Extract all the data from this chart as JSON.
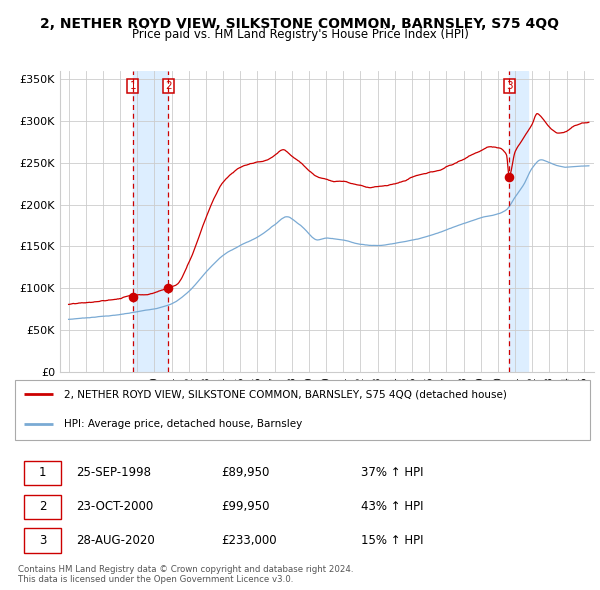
{
  "title": "2, NETHER ROYD VIEW, SILKSTONE COMMON, BARNSLEY, S75 4QQ",
  "subtitle": "Price paid vs. HM Land Registry's House Price Index (HPI)",
  "legend_label_red": "2, NETHER ROYD VIEW, SILKSTONE COMMON, BARNSLEY, S75 4QQ (detached house)",
  "legend_label_blue": "HPI: Average price, detached house, Barnsley",
  "transactions": [
    {
      "num": 1,
      "date": "25-SEP-1998",
      "price": 89950,
      "year": 1998.73,
      "pct": "37% ↑ HPI"
    },
    {
      "num": 2,
      "date": "23-OCT-2000",
      "price": 99950,
      "year": 2000.81,
      "pct": "43% ↑ HPI"
    },
    {
      "num": 3,
      "date": "28-AUG-2020",
      "price": 233000,
      "year": 2020.66,
      "pct": "15% ↑ HPI"
    }
  ],
  "ylabel_ticks": [
    "£0",
    "£50K",
    "£100K",
    "£150K",
    "£200K",
    "£250K",
    "£300K",
    "£350K"
  ],
  "ytick_vals": [
    0,
    50000,
    100000,
    150000,
    200000,
    250000,
    300000,
    350000
  ],
  "ylim": [
    0,
    360000
  ],
  "xlim_start": 1994.5,
  "xlim_end": 2025.6,
  "red_color": "#cc0000",
  "blue_color": "#7aaad4",
  "bg_shade_color": "#ddeeff",
  "grid_color": "#cccccc",
  "footer_text": "Contains HM Land Registry data © Crown copyright and database right 2024.\nThis data is licensed under the Open Government Licence v3.0.",
  "blue_anchors": [
    [
      1995.0,
      61000
    ],
    [
      1996.0,
      63000
    ],
    [
      1997.0,
      65000
    ],
    [
      1998.0,
      67000
    ],
    [
      1999.0,
      70000
    ],
    [
      2000.0,
      74000
    ],
    [
      2001.0,
      80000
    ],
    [
      2002.0,
      95000
    ],
    [
      2003.0,
      118000
    ],
    [
      2004.0,
      138000
    ],
    [
      2005.0,
      150000
    ],
    [
      2006.0,
      160000
    ],
    [
      2007.0,
      175000
    ],
    [
      2007.7,
      185000
    ],
    [
      2008.5,
      175000
    ],
    [
      2009.5,
      158000
    ],
    [
      2010.0,
      160000
    ],
    [
      2011.0,
      158000
    ],
    [
      2012.0,
      153000
    ],
    [
      2013.0,
      152000
    ],
    [
      2014.0,
      155000
    ],
    [
      2015.0,
      158000
    ],
    [
      2016.0,
      163000
    ],
    [
      2017.0,
      170000
    ],
    [
      2018.0,
      178000
    ],
    [
      2019.0,
      185000
    ],
    [
      2020.0,
      190000
    ],
    [
      2020.5,
      195000
    ],
    [
      2021.0,
      210000
    ],
    [
      2021.5,
      225000
    ],
    [
      2022.0,
      245000
    ],
    [
      2022.5,
      255000
    ],
    [
      2023.0,
      252000
    ],
    [
      2023.5,
      248000
    ],
    [
      2024.0,
      246000
    ],
    [
      2024.5,
      247000
    ],
    [
      2025.3,
      248000
    ]
  ],
  "red_anchors": [
    [
      1995.0,
      79000
    ],
    [
      1996.0,
      80000
    ],
    [
      1997.0,
      82000
    ],
    [
      1998.0,
      85000
    ],
    [
      1998.73,
      89950
    ],
    [
      1999.5,
      91000
    ],
    [
      2000.0,
      94000
    ],
    [
      2000.81,
      99950
    ],
    [
      2001.3,
      104000
    ],
    [
      2002.0,
      130000
    ],
    [
      2003.0,
      185000
    ],
    [
      2003.5,
      210000
    ],
    [
      2004.0,
      228000
    ],
    [
      2004.5,
      238000
    ],
    [
      2005.0,
      245000
    ],
    [
      2005.5,
      248000
    ],
    [
      2006.0,
      250000
    ],
    [
      2006.5,
      252000
    ],
    [
      2007.0,
      258000
    ],
    [
      2007.5,
      265000
    ],
    [
      2008.0,
      258000
    ],
    [
      2008.5,
      250000
    ],
    [
      2009.0,
      240000
    ],
    [
      2009.5,
      232000
    ],
    [
      2010.0,
      230000
    ],
    [
      2010.5,
      228000
    ],
    [
      2011.0,
      228000
    ],
    [
      2011.5,
      225000
    ],
    [
      2012.0,
      224000
    ],
    [
      2012.5,
      222000
    ],
    [
      2013.0,
      224000
    ],
    [
      2013.5,
      225000
    ],
    [
      2014.0,
      228000
    ],
    [
      2014.5,
      230000
    ],
    [
      2015.0,
      235000
    ],
    [
      2015.5,
      238000
    ],
    [
      2016.0,
      240000
    ],
    [
      2016.5,
      242000
    ],
    [
      2017.0,
      246000
    ],
    [
      2017.5,
      250000
    ],
    [
      2018.0,
      255000
    ],
    [
      2018.5,
      260000
    ],
    [
      2019.0,
      265000
    ],
    [
      2019.5,
      270000
    ],
    [
      2020.0,
      268000
    ],
    [
      2020.5,
      260000
    ],
    [
      2020.66,
      233000
    ],
    [
      2021.0,
      262000
    ],
    [
      2021.5,
      278000
    ],
    [
      2022.0,
      295000
    ],
    [
      2022.3,
      308000
    ],
    [
      2022.7,
      300000
    ],
    [
      2023.0,
      292000
    ],
    [
      2023.5,
      285000
    ],
    [
      2024.0,
      288000
    ],
    [
      2024.5,
      295000
    ],
    [
      2025.3,
      300000
    ]
  ]
}
